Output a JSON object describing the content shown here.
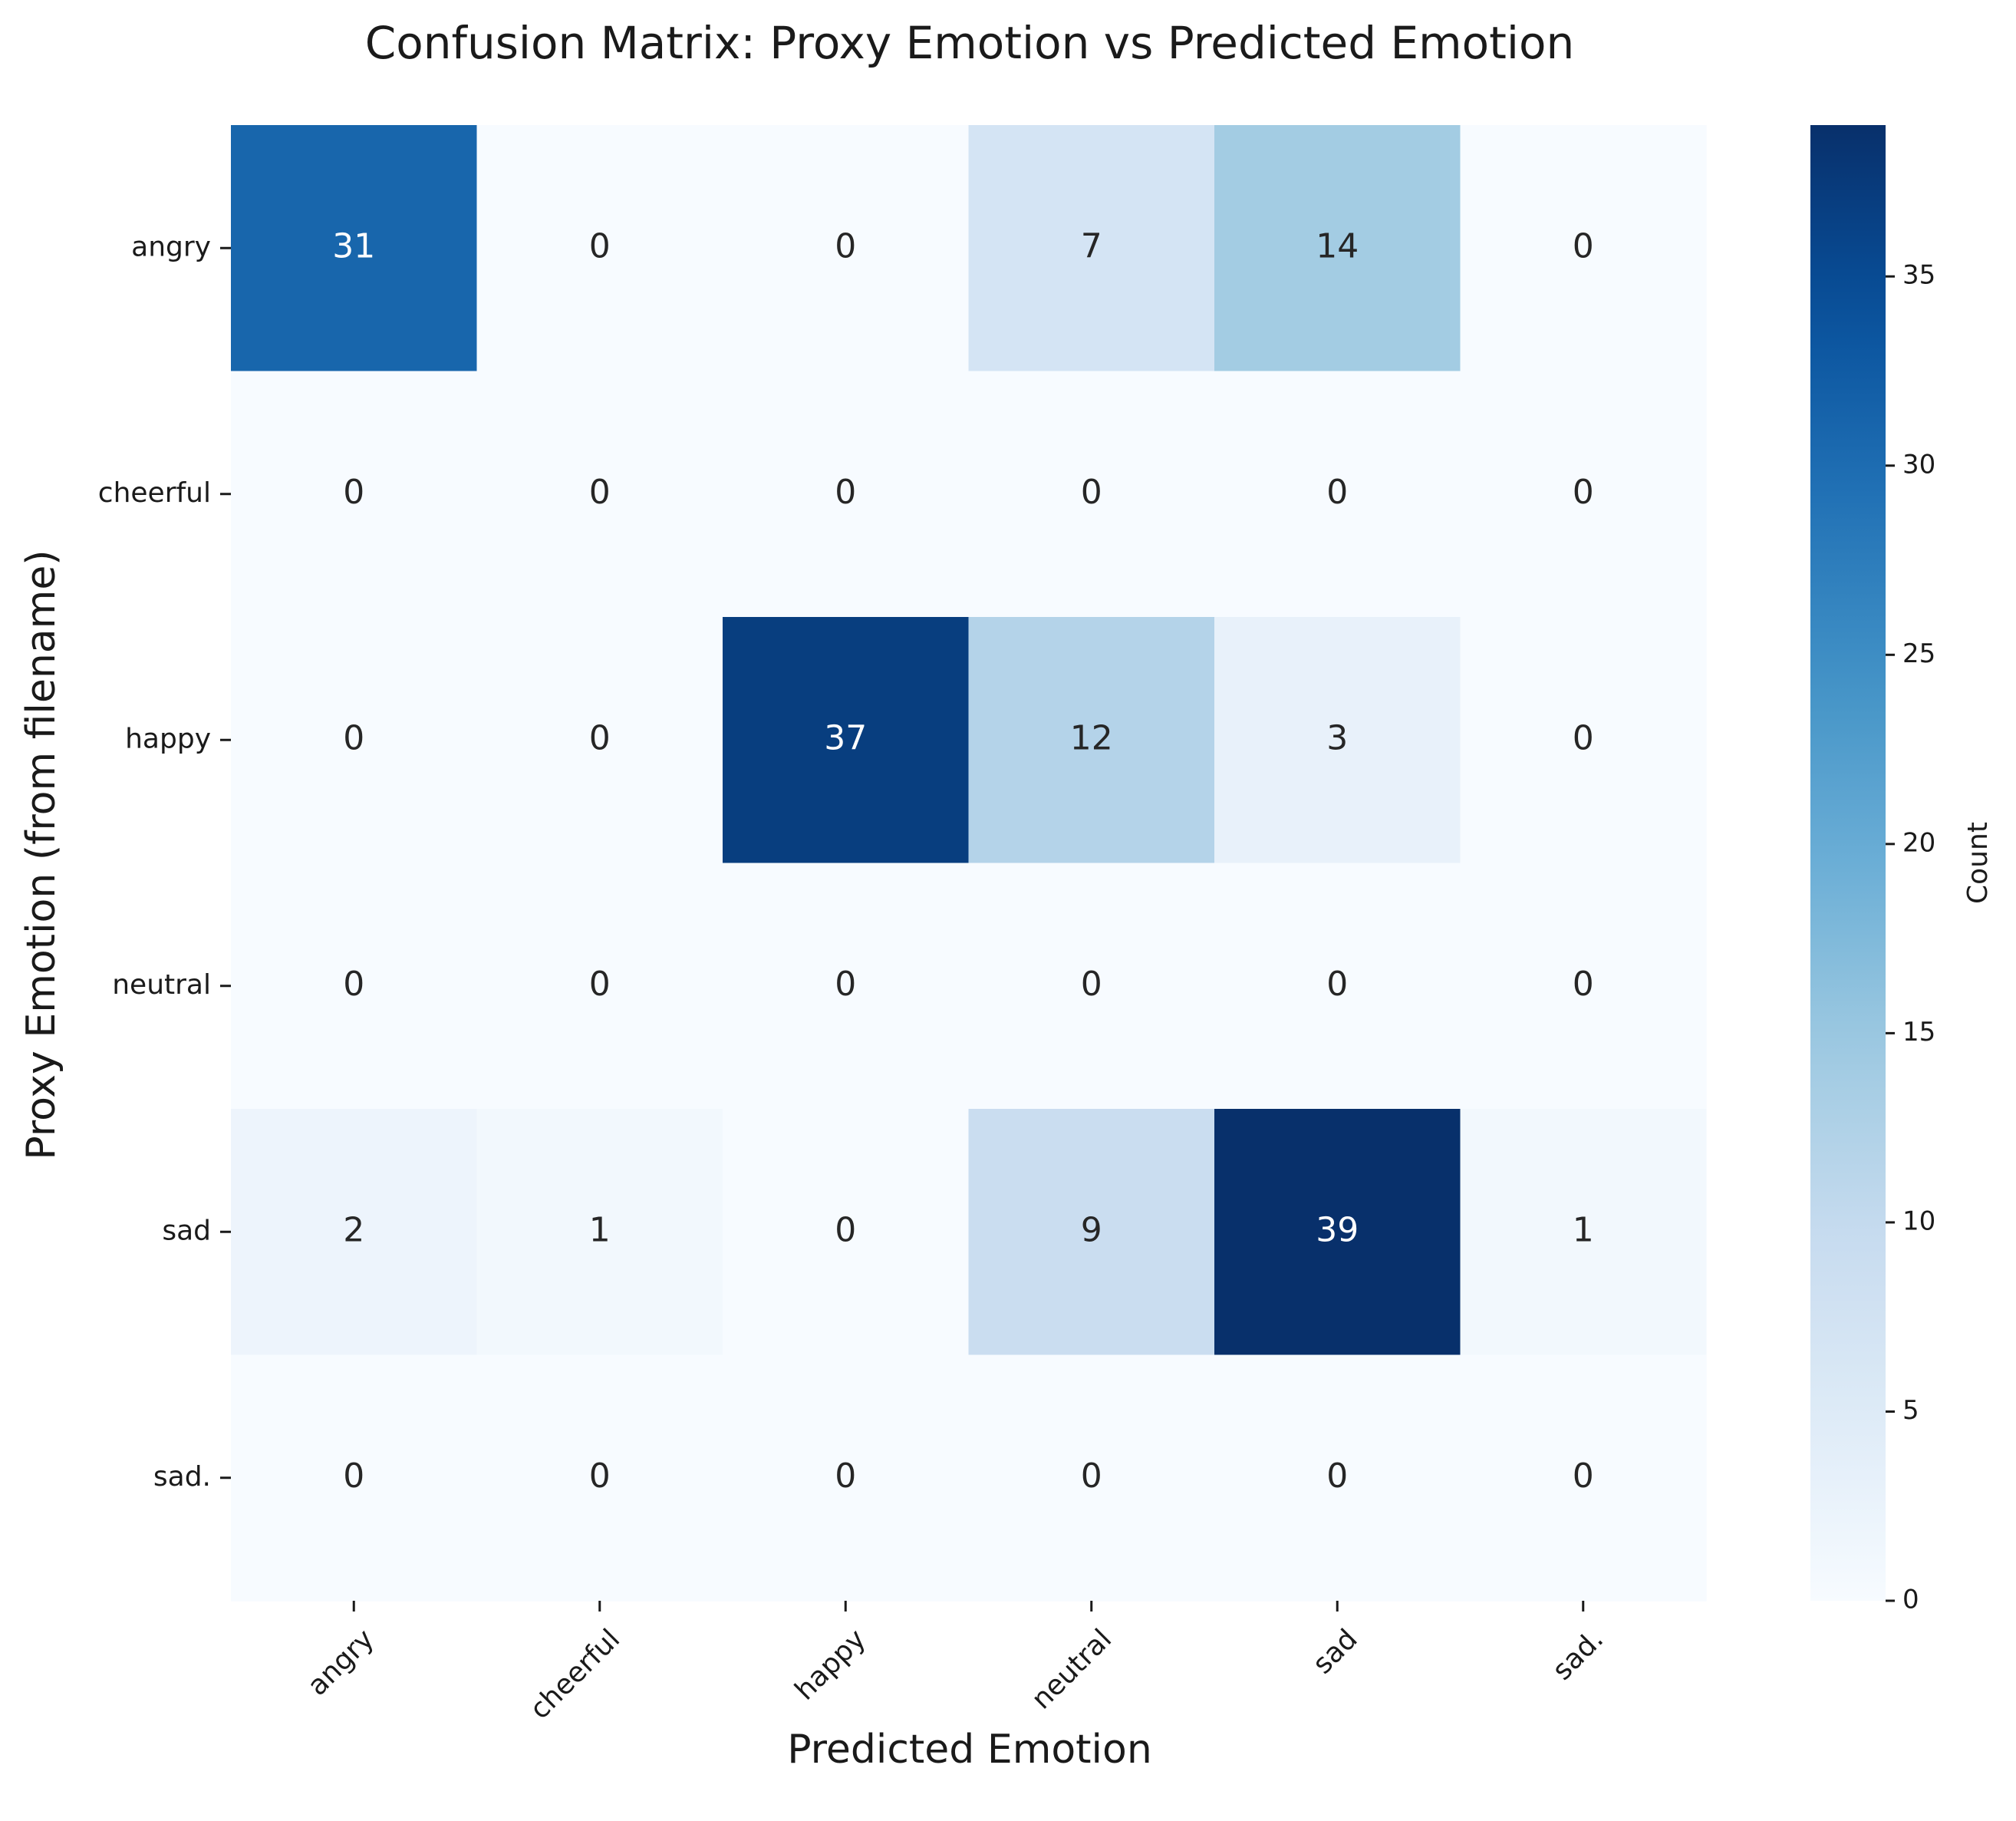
{
  "chart_data": {
    "type": "heatmap",
    "title": "Confusion Matrix: Proxy Emotion vs Predicted Emotion",
    "xlabel": "Predicted Emotion",
    "ylabel": "Proxy Emotion (from filename)",
    "x_categories": [
      "angry",
      "cheerful",
      "happy",
      "neutral",
      "sad",
      "sad."
    ],
    "y_categories": [
      "angry",
      "cheerful",
      "happy",
      "neutral",
      "sad",
      "sad."
    ],
    "values": [
      [
        31,
        0,
        0,
        7,
        14,
        0
      ],
      [
        0,
        0,
        0,
        0,
        0,
        0
      ],
      [
        0,
        0,
        37,
        12,
        3,
        0
      ],
      [
        0,
        0,
        0,
        0,
        0,
        0
      ],
      [
        2,
        1,
        0,
        9,
        39,
        1
      ],
      [
        0,
        0,
        0,
        0,
        0,
        0
      ]
    ],
    "colorbar": {
      "label": "Count",
      "min": 0,
      "max": 39,
      "ticks": [
        0,
        5,
        10,
        15,
        20,
        25,
        30,
        35
      ],
      "colormap": "Blues"
    }
  }
}
